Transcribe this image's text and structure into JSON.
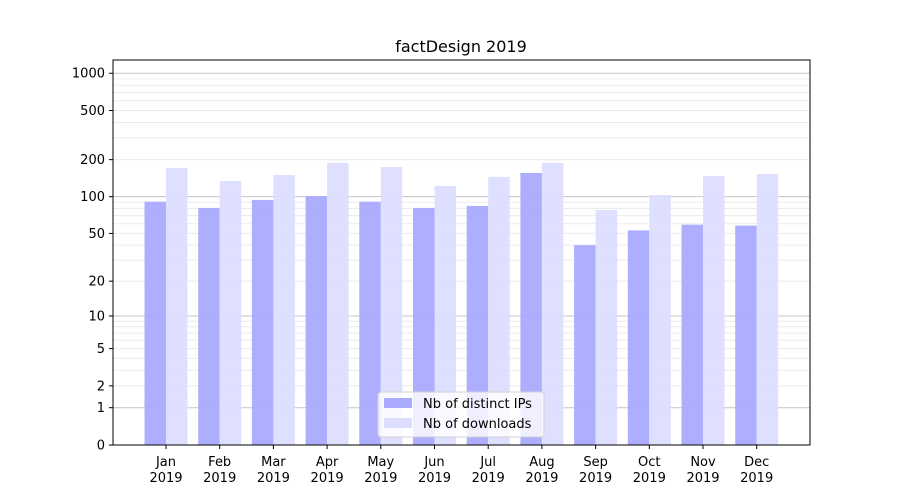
{
  "chart_data": {
    "type": "bar",
    "title": "factDesign 2019",
    "xlabel": "",
    "ylabel": "",
    "yscale": "log(1+y)",
    "ylim": [
      0,
      1200
    ],
    "yticks": [
      0,
      1,
      2,
      5,
      10,
      20,
      50,
      100,
      200,
      500,
      1000
    ],
    "grid": true,
    "legend_position": "bottom-center",
    "categories": [
      "Jan\n2019",
      "Feb\n2019",
      "Mar\n2019",
      "Apr\n2019",
      "May\n2019",
      "Jun\n2019",
      "Jul\n2019",
      "Aug\n2019",
      "Sep\n2019",
      "Oct\n2019",
      "Nov\n2019",
      "Dec\n2019"
    ],
    "series": [
      {
        "name": "Nb of distinct IPs",
        "color": "#aaaaff",
        "values": [
          91,
          81,
          94,
          101,
          91,
          81,
          84,
          156,
          40,
          53,
          59,
          58
        ]
      },
      {
        "name": "Nb of downloads",
        "color": "#ddddff",
        "values": [
          171,
          134,
          150,
          188,
          174,
          122,
          145,
          188,
          78,
          103,
          147,
          153
        ]
      }
    ]
  }
}
